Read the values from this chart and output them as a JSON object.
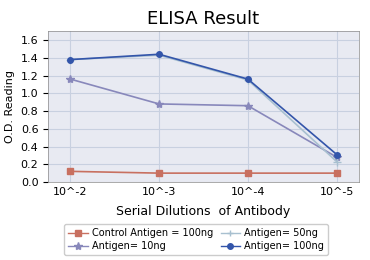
{
  "title": "ELISA Result",
  "xlabel": "Serial Dilutions  of Antibody",
  "ylabel": "O.D. Reading",
  "x_labels": [
    "10^-2",
    "10^-3",
    "10^-4",
    "10^-5"
  ],
  "series": [
    {
      "label": "Control Antigen = 100ng",
      "color": "#c87060",
      "marker": "s",
      "markersize": 4,
      "values": [
        0.12,
        0.1,
        0.1,
        0.1
      ]
    },
    {
      "label": "Antigen= 10ng",
      "color": "#8888bb",
      "marker": "*",
      "markersize": 6,
      "values": [
        1.16,
        0.88,
        0.86,
        0.28
      ]
    },
    {
      "label": "Antigen= 50ng",
      "color": "#a8c0d0",
      "marker": "+",
      "markersize": 6,
      "values": [
        1.38,
        1.43,
        1.15,
        0.23
      ]
    },
    {
      "label": "Antigen= 100ng",
      "color": "#3355aa",
      "marker": "o",
      "markersize": 4,
      "values": [
        1.38,
        1.44,
        1.16,
        0.31
      ]
    }
  ],
  "ylim": [
    0,
    1.7
  ],
  "yticks": [
    0.0,
    0.2,
    0.4,
    0.6,
    0.8,
    1.0,
    1.2,
    1.4,
    1.6
  ],
  "grid_color": "#c8d0e0",
  "bg_color": "#e8eaf2",
  "title_fontsize": 13,
  "tick_fontsize": 8,
  "xlabel_fontsize": 9,
  "ylabel_fontsize": 8,
  "legend_fontsize": 7
}
